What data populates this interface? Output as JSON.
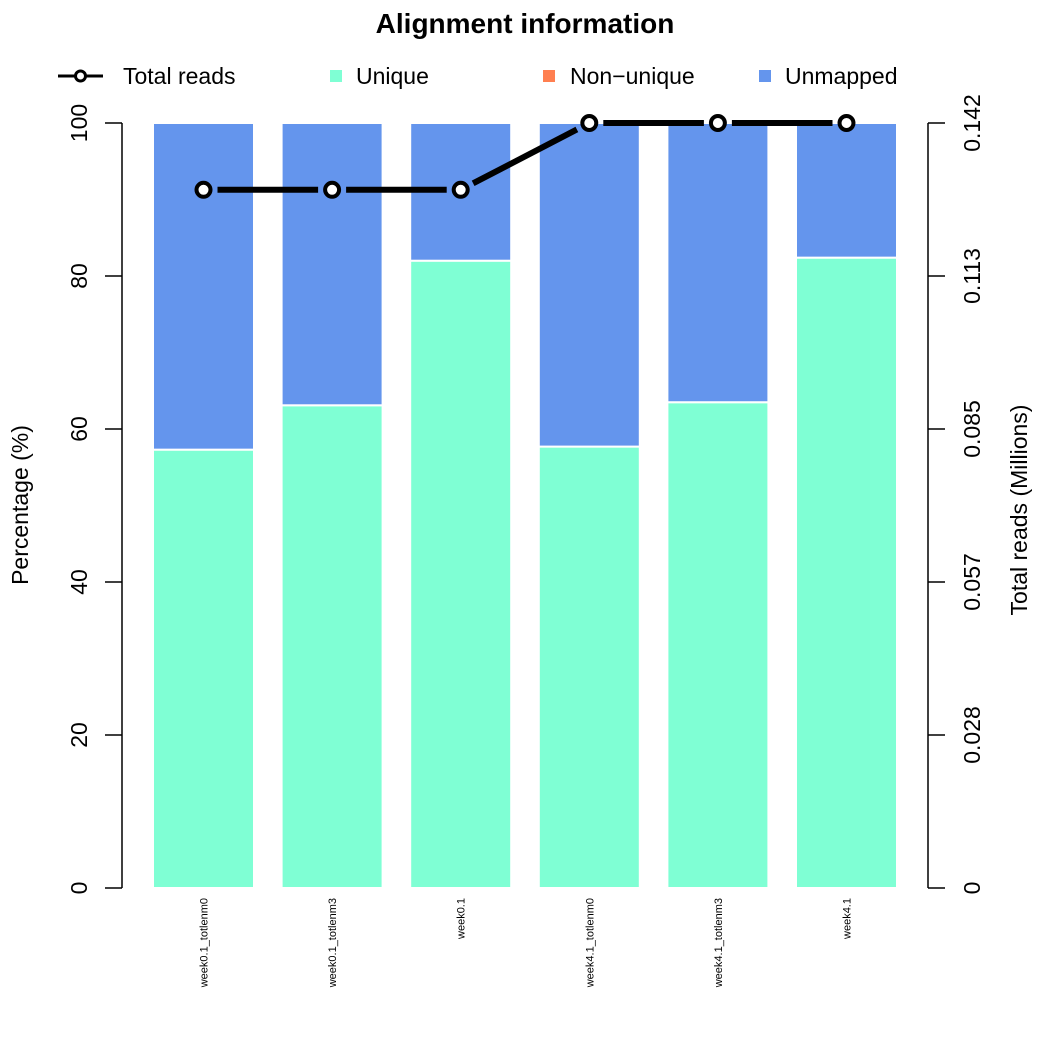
{
  "chart_data": {
    "type": "bar",
    "stacked": true,
    "title": "Alignment information",
    "categories": [
      "week0.1_totlenm0",
      "week0.1_totlenm3",
      "week0.1",
      "week4.1_totlenm0",
      "week4.1_totlenm3",
      "week4.1"
    ],
    "series": [
      {
        "name": "Unique",
        "color": "#7fffd4",
        "values": [
          57.3,
          63.1,
          82.0,
          57.7,
          63.5,
          82.4
        ]
      },
      {
        "name": "Non−unique",
        "color": "#ff7f50",
        "values": [
          0,
          0,
          0,
          0,
          0,
          0
        ]
      },
      {
        "name": "Unmapped",
        "color": "#6495ed",
        "values": [
          42.7,
          36.9,
          18.0,
          42.3,
          36.5,
          17.6
        ]
      }
    ],
    "line_series": {
      "name": "Total reads",
      "color": "#000000",
      "values": [
        0.1296,
        0.1296,
        0.1296,
        0.142,
        0.142,
        0.142
      ]
    },
    "ylabel": "Percentage (%)",
    "ylim": [
      0,
      100
    ],
    "yticks": [
      "0",
      "20",
      "40",
      "60",
      "80",
      "100"
    ],
    "y2label": "Total reads (Millions)",
    "y2lim": [
      0,
      0.142
    ],
    "y2ticks": [
      "0",
      "0.028",
      "0.057",
      "0.085",
      "0.113",
      "0.142"
    ],
    "legend_position": "top",
    "grid": false
  }
}
